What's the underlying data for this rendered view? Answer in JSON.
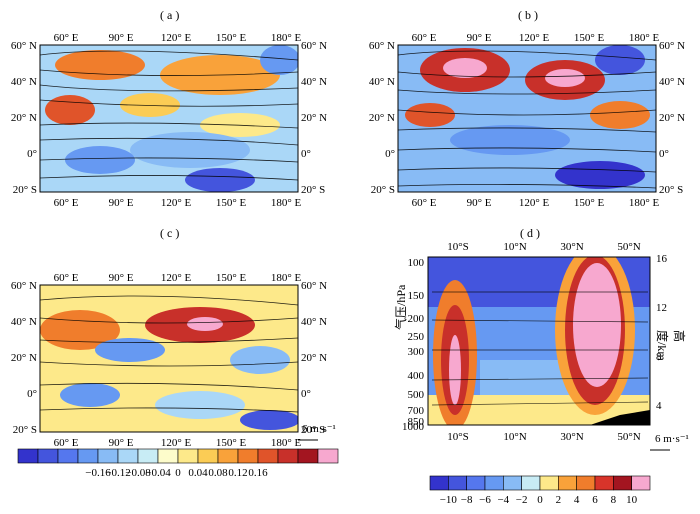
{
  "panels": [
    {
      "label": "( a )",
      "type": "map"
    },
    {
      "label": "( b )",
      "type": "map"
    },
    {
      "label": "( c )",
      "type": "map"
    },
    {
      "label": "( d )",
      "type": "cross-section"
    }
  ],
  "map_axes": {
    "lon_ticks": [
      "60° E",
      "90° E",
      "120° E",
      "150° E",
      "180° E"
    ],
    "lat_ticks_left": [
      "60° N",
      "40° N",
      "20° N",
      "0°",
      "20° S"
    ],
    "lat_ticks_right": [
      "60° N",
      "40° N",
      "20° N",
      "0°",
      "20° S"
    ]
  },
  "section_axes": {
    "x_ticks": [
      "10°S",
      "10°N",
      "30°N",
      "50°N"
    ],
    "ylabel": "气压/hPa",
    "ylabel_right": "高度/km",
    "pressure_ticks": [
      "100",
      "150",
      "200",
      "250",
      "300",
      "400",
      "500",
      "700",
      "850",
      "1000"
    ],
    "height_ticks": [
      "16",
      "12",
      "8",
      "4"
    ]
  },
  "vector_ref": {
    "map": "6 m·s⁻¹",
    "section": "6 m·s⁻¹"
  },
  "colorbars": [
    {
      "ticks": [
        "−0.16",
        "−0.12",
        "−0.08",
        "−0.04",
        "0",
        "0.04",
        "0.08",
        "0.12",
        "0.16"
      ],
      "colors": [
        "#3333cc",
        "#4455dd",
        "#5577ee",
        "#6699f2",
        "#88bbf5",
        "#aad7f7",
        "#c8ecf5",
        "#fdfccb",
        "#fde98a",
        "#fbcc55",
        "#f9a23a",
        "#f07d2c",
        "#e0542a",
        "#c8302a",
        "#a31520",
        "#f7a8cf"
      ]
    },
    {
      "ticks": [
        "−10",
        "−8",
        "−6",
        "−4",
        "−2",
        "0",
        "2",
        "4",
        "6",
        "8",
        "10"
      ],
      "colors": [
        "#3333cc",
        "#4455dd",
        "#5577ee",
        "#6699f2",
        "#88bbf5",
        "#c8ecf5",
        "#fde98a",
        "#f9a23a",
        "#f07d2c",
        "#d8342a",
        "#a31520",
        "#f7a8cf"
      ]
    }
  ],
  "chart_data": [
    {
      "type": "heatmap",
      "panel": "a",
      "x_range": [
        "40° E",
        "180° E"
      ],
      "y_range": [
        "20° S",
        "60° N"
      ],
      "overlay": "streamlines"
    },
    {
      "type": "heatmap",
      "panel": "b",
      "x_range": [
        "40° E",
        "180° E"
      ],
      "y_range": [
        "20° S",
        "60° N"
      ],
      "overlay": "streamlines"
    },
    {
      "type": "heatmap",
      "panel": "c",
      "x_range": [
        "40° E",
        "180° E"
      ],
      "y_range": [
        "20° S",
        "60° N"
      ],
      "overlay": "vectors"
    },
    {
      "type": "heatmap",
      "panel": "d",
      "x_range": [
        "20° S",
        "60° N"
      ],
      "y_range": [
        1000,
        100
      ],
      "overlay": "vectors"
    }
  ]
}
